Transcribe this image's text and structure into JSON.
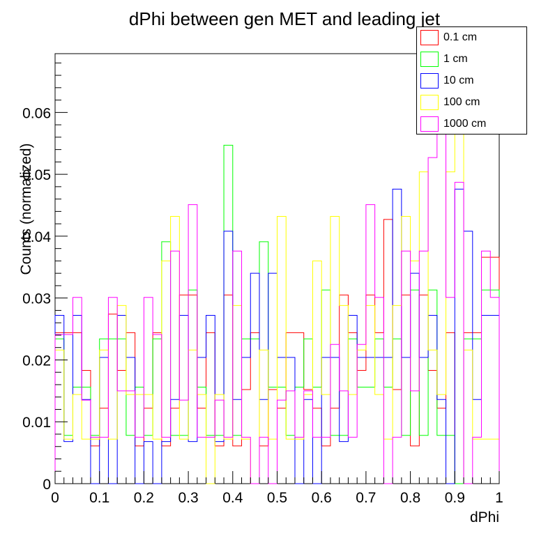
{
  "chart_data": {
    "type": "histogram",
    "title": "dPhi between gen MET and leading jet",
    "xlabel": "dPhi",
    "ylabel": "Counts (normalized)",
    "xlim": [
      0,
      1
    ],
    "ylim": [
      0,
      0.0695
    ],
    "x_ticks": [
      "0",
      "0.1",
      "0.2",
      "0.3",
      "0.4",
      "0.5",
      "0.6",
      "0.7",
      "0.8",
      "0.9",
      "1"
    ],
    "y_ticks": [
      "0",
      "0.01",
      "0.02",
      "0.03",
      "0.04",
      "0.05",
      "0.06"
    ],
    "bins": 50,
    "legend_position": "top-right",
    "series": [
      {
        "name": "0.1 cm",
        "color": "#ff0000",
        "values": [
          0.0244,
          0.0244,
          0.0244,
          0.0183,
          0.0061,
          0.0122,
          0.0274,
          0.0183,
          0.0244,
          0.0061,
          0.0122,
          0.0244,
          0.0061,
          0.0122,
          0.0305,
          0.0305,
          0.0122,
          0.0244,
          0.0061,
          0.0305,
          0.0061,
          0.0152,
          0.0244,
          0.0061,
          0.0152,
          0.0122,
          0.0244,
          0.0244,
          0.0152,
          0.0122,
          0.0061,
          0.0122,
          0.0305,
          0.0244,
          0.0183,
          0.0305,
          0.0244,
          0.0427,
          0.0152,
          0.0305,
          0.0061,
          0.0305,
          0.0183,
          0.0122,
          0.0244,
          0.0,
          0.0244,
          0.0244,
          0.0366,
          0.0366
        ]
      },
      {
        "name": "1 cm",
        "color": "#00ff00",
        "values": [
          0.0234,
          0.0078,
          0.0156,
          0.0156,
          0.0078,
          0.0234,
          0.0234,
          0.0234,
          0.0078,
          0.0156,
          0.0078,
          0.0234,
          0.0391,
          0.0078,
          0.0078,
          0.0313,
          0.0156,
          0.0078,
          0.0078,
          0.0547,
          0.0078,
          0.0234,
          0.0234,
          0.0391,
          0.0156,
          0.0156,
          0.0078,
          0.0156,
          0.0234,
          0.0156,
          0.0313,
          0.0078,
          0.0078,
          0.0234,
          0.0156,
          0.0156,
          0.0234,
          0.0156,
          0.0234,
          0.0078,
          0.0313,
          0.0078,
          0.0313,
          0.0078,
          0.0078,
          0.0,
          0.0234,
          0.0234,
          0.0313,
          0.0313
        ]
      },
      {
        "name": "10 cm",
        "color": "#0000ff",
        "values": [
          0.0272,
          0.0068,
          0.0272,
          0.0136,
          0.0,
          0.0204,
          0.0,
          0.0272,
          0.0204,
          0.0,
          0.0068,
          0.0,
          0.0068,
          0.0136,
          0.0272,
          0.0068,
          0.0204,
          0.0272,
          0.0068,
          0.0408,
          0.0136,
          0.0204,
          0.034,
          0.0136,
          0.034,
          0.0204,
          0.0204,
          0.0,
          0.0136,
          0.0,
          0.0204,
          0.0204,
          0.0068,
          0.0272,
          0.0204,
          0.0204,
          0.0204,
          0.0204,
          0.0476,
          0.0204,
          0.034,
          0.0204,
          0.0272,
          0.0136,
          0.0,
          0.0476,
          0.0408,
          0.0136,
          0.0272,
          0.0272
        ]
      },
      {
        "name": "100 cm",
        "color": "#ffff00",
        "values": [
          0.0216,
          0.0072,
          0.0144,
          0.0072,
          0.0072,
          0.0216,
          0.0072,
          0.0288,
          0.0144,
          0.0144,
          0.0144,
          0.0072,
          0.036,
          0.0432,
          0.0072,
          0.0216,
          0.0144,
          0.0,
          0.0144,
          0.0072,
          0.0288,
          0.0072,
          0.0,
          0.0216,
          0.0072,
          0.0432,
          0.0072,
          0.0072,
          0.0144,
          0.036,
          0.0144,
          0.0432,
          0.0288,
          0.0144,
          0.0216,
          0.0288,
          0.0144,
          0.0072,
          0.0288,
          0.0432,
          0.036,
          0.0504,
          0.0216,
          0.0144,
          0.0504,
          0.0577,
          0.0216,
          0.0072,
          0.0072,
          0.0072
        ]
      },
      {
        "name": "1000 cm",
        "color": "#ff00ff",
        "values": [
          0.0241,
          0.0241,
          0.0301,
          0.0135,
          0.0075,
          0.0075,
          0.0301,
          0.015,
          0.015,
          0.0075,
          0.0301,
          0.0241,
          0.0075,
          0.0376,
          0.0135,
          0.0451,
          0.0075,
          0.0075,
          0.0135,
          0.0075,
          0.0376,
          0.0075,
          0.0,
          0.0075,
          0.0,
          0.0135,
          0.015,
          0.0075,
          0.015,
          0.0075,
          0.0075,
          0.0225,
          0.015,
          0.0075,
          0.0225,
          0.0451,
          0.0301,
          0.0,
          0.0075,
          0.0376,
          0.015,
          0.0376,
          0.0527,
          0.0616,
          0.0301,
          0.0487,
          0.0,
          0.0075,
          0.0376,
          0.0301
        ]
      }
    ]
  }
}
